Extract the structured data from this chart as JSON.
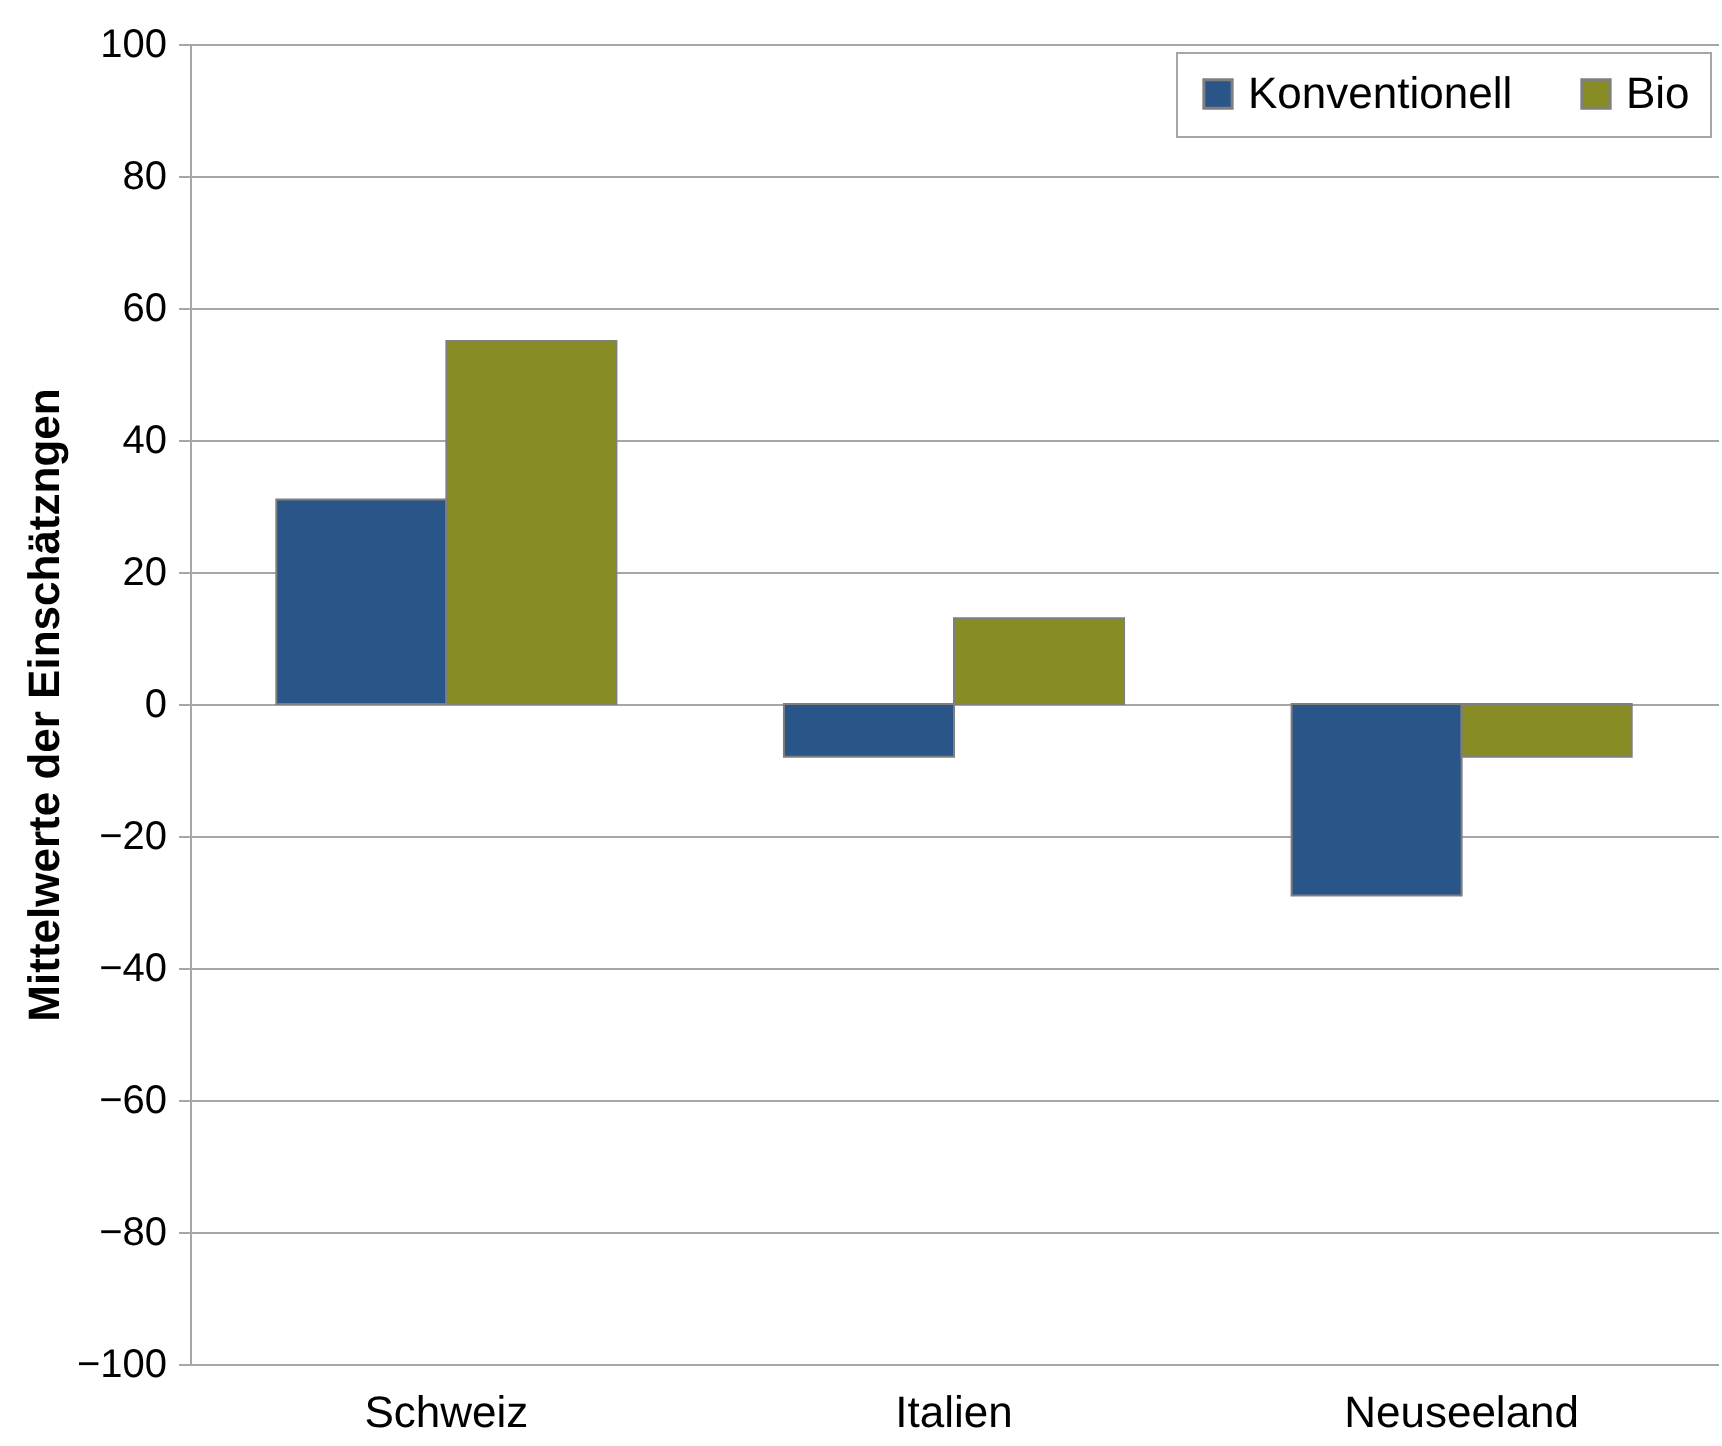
{
  "chart_data": {
    "type": "bar",
    "ylabel": "Mittelwerte der Einschätzngen",
    "categories": [
      "Schweiz",
      "Italien",
      "Neuseeland"
    ],
    "series": [
      {
        "name": "Konventionell",
        "color": "#2a5589",
        "values": [
          31,
          -8,
          -29
        ]
      },
      {
        "name": "Bio",
        "color": "#878c25",
        "values": [
          55,
          13,
          -8
        ]
      }
    ],
    "ylim": [
      -100,
      100
    ],
    "yticks": [
      -100,
      -80,
      -60,
      -40,
      -20,
      0,
      20,
      40,
      60,
      80,
      100
    ],
    "grid": "y",
    "legend": "top right"
  }
}
